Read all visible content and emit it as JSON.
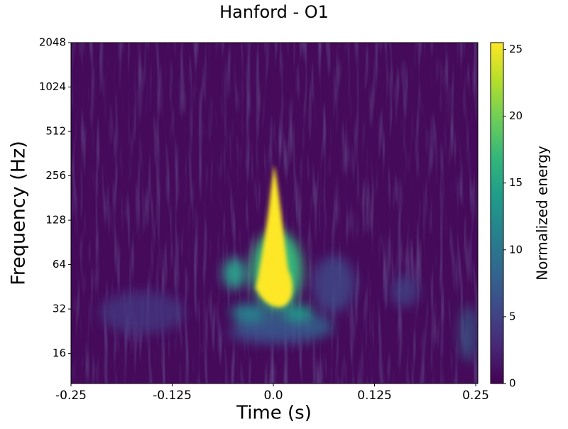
{
  "chart_data": {
    "type": "spectrogram",
    "title": "Hanford - O1",
    "xlabel": "Time (s)",
    "ylabel": "Frequency (Hz)",
    "xlim": [
      -0.25,
      0.2526
    ],
    "xticks": [
      -0.25,
      -0.125,
      {
        "value": 0,
        "label": "0.0"
      },
      0.125,
      0.25
    ],
    "ylim": [
      10,
      2048
    ],
    "yscale": "log2",
    "yticks": [
      16,
      32,
      64,
      128,
      256,
      512,
      1024,
      2048
    ],
    "colorbar_label": "Normalized energy",
    "clim": [
      0,
      25.5
    ],
    "cticks": [
      0,
      5,
      10,
      15,
      20,
      25
    ],
    "colormap": [
      "#440154",
      "#482878",
      "#3e4a89",
      "#31688e",
      "#26828e",
      "#1f9e89",
      "#35b779",
      "#6ece58",
      "#b5de2b",
      "#fde725"
    ]
  }
}
